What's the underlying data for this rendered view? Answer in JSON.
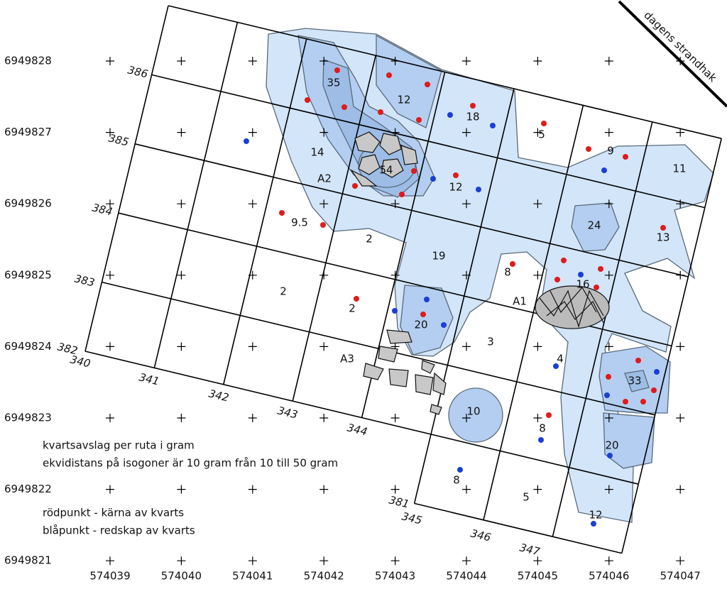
{
  "y_labels": [
    6949828,
    6949827,
    6949826,
    6949825,
    6949824,
    6949823,
    6949822,
    6949821
  ],
  "x_labels": [
    574039,
    574040,
    574041,
    574042,
    574043,
    574044,
    574045,
    574046,
    574047
  ],
  "row_labels": [
    386,
    385,
    384,
    383,
    382,
    381
  ],
  "col_labels": [
    340,
    341,
    342,
    343,
    344,
    345,
    346,
    347
  ],
  "cell_values": [
    35,
    12,
    18,
    5,
    9,
    11,
    14,
    54,
    12,
    9.5,
    2,
    19,
    24,
    13,
    2,
    8,
    16,
    2,
    20,
    3,
    4,
    33,
    10,
    8,
    20,
    8,
    5,
    12
  ],
  "areas": [
    "A1",
    "A2",
    "A3"
  ],
  "legend": [
    "kvartsavslag per ruta i gram",
    "ekvidistans på isogoner är 10 gram från 10 till 50 gram",
    "rödpunkt - kärna av kvarts",
    "blåpunkt - redskap av kvarts"
  ],
  "shoreline": "dagens strandhak"
}
